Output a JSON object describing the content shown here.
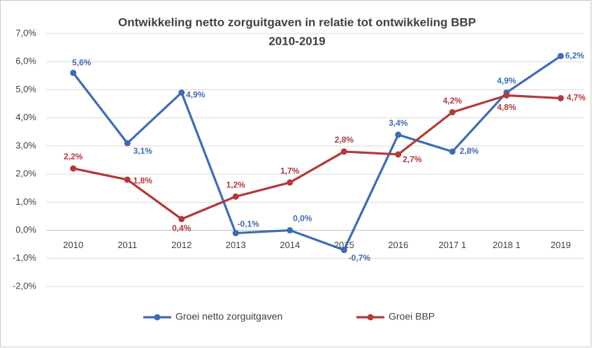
{
  "chart_data": {
    "type": "line",
    "title": "Ontwikkeling netto zorguitgaven in relatie tot ontwikkeling BBP",
    "subtitle": "2010-2019",
    "categories": [
      "2010",
      "2011",
      "2012",
      "2013",
      "2014",
      "2015",
      "2016",
      "2017 1",
      "2018 1",
      "2019"
    ],
    "series": [
      {
        "name": "Groei netto zorguitgaven",
        "color": "#3e6cb4",
        "values": [
          5.6,
          3.1,
          4.9,
          -0.1,
          0.0,
          -0.7,
          3.4,
          2.8,
          4.9,
          6.2
        ],
        "value_labels": [
          "5,6%",
          "3,1%",
          "4,9%",
          "-0,1%",
          "0,0%",
          "-0,7%",
          "3,4%",
          "2,8%",
          "4,9%",
          "6,2%"
        ]
      },
      {
        "name": "Groei BBP",
        "color": "#b23a3a",
        "values": [
          2.2,
          1.8,
          0.4,
          1.2,
          1.7,
          2.8,
          2.7,
          4.2,
          4.8,
          4.7
        ],
        "value_labels": [
          "2,2%",
          "1,8%",
          "0,4%",
          "1,2%",
          "1,7%",
          "2,8%",
          "2,7%",
          "4,2%",
          "4,8%",
          "4,7%"
        ]
      }
    ],
    "ylim": [
      -2,
      7
    ],
    "yticks": [
      {
        "value": -2,
        "label": "-2,0%"
      },
      {
        "value": -1,
        "label": "-1,0%"
      },
      {
        "value": 0,
        "label": "0,0%"
      },
      {
        "value": 1,
        "label": "1,0%"
      },
      {
        "value": 2,
        "label": "2,0%"
      },
      {
        "value": 3,
        "label": "3,0%"
      },
      {
        "value": 4,
        "label": "4,0%"
      },
      {
        "value": 5,
        "label": "5,0%"
      },
      {
        "value": 6,
        "label": "6,0%"
      },
      {
        "value": 7,
        "label": "7,0%"
      }
    ],
    "grid": true,
    "legend": "bottom"
  }
}
